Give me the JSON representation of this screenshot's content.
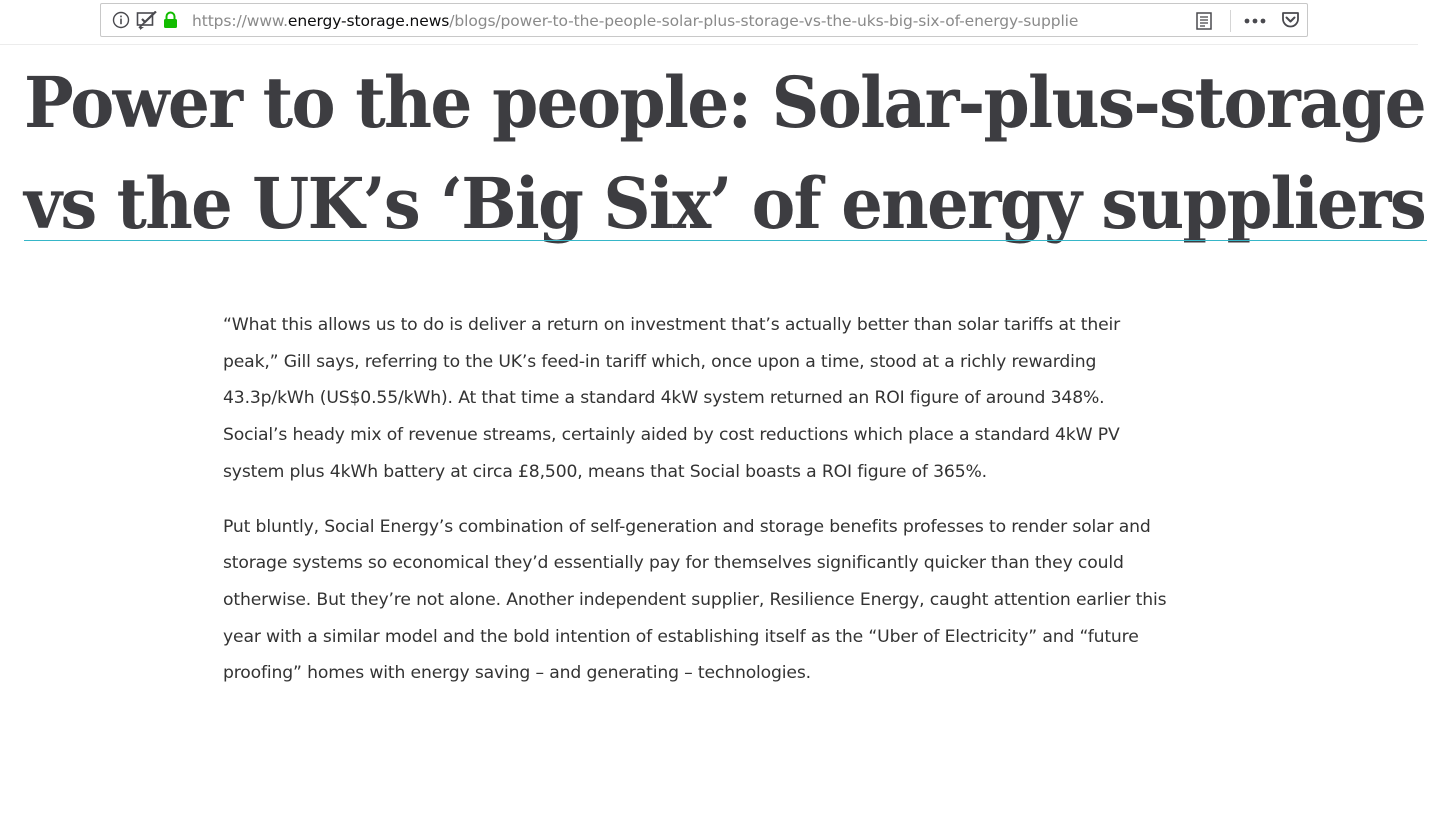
{
  "browser": {
    "url_prefix": "https://www.",
    "url_domain": "energy-storage.news",
    "url_path": "/blogs/power-to-the-people-solar-plus-storage-vs-the-uks-big-six-of-energy-supplie",
    "icons": [
      "info-icon",
      "tracking-protection-icon",
      "lock-icon",
      "reader-view-icon",
      "page-actions-icon",
      "pocket-icon"
    ]
  },
  "article": {
    "headline_line1": "Power to the people: Solar-plus-storage",
    "headline_line2": "vs the UK’s ‘Big Six’ of energy suppliers",
    "paragraphs": [
      "“What this allows us to do is deliver a return on investment that’s actually better than solar tariffs at their peak,” Gill says, referring to the UK’s feed-in tariff which, once upon a time, stood at a richly rewarding 43.3p/kWh (US$0.55/kWh). At that time a standard 4kW system returned an ROI figure of around 348%. Social’s heady mix of revenue streams, certainly aided by cost reductions which place a standard 4kW PV system plus 4kWh battery at circa £8,500, means that Social boasts a ROI figure of 365%.",
      "Put bluntly, Social Energy’s combination of self-generation and storage benefits professes to render solar and storage systems so economical they’d essentially pay for themselves significantly quicker than they could otherwise. But they’re not alone. Another independent supplier, Resilience Energy, caught attention earlier this year with a similar model and the bold intention of establishing itself as the “Uber of Electricity” and “future proofing” homes with energy saving – and generating – technologies."
    ]
  },
  "colors": {
    "headline": "#3d3d41",
    "body_text": "#333333",
    "rule_accent": "#36b6c8",
    "lock_green": "#12bc00"
  }
}
